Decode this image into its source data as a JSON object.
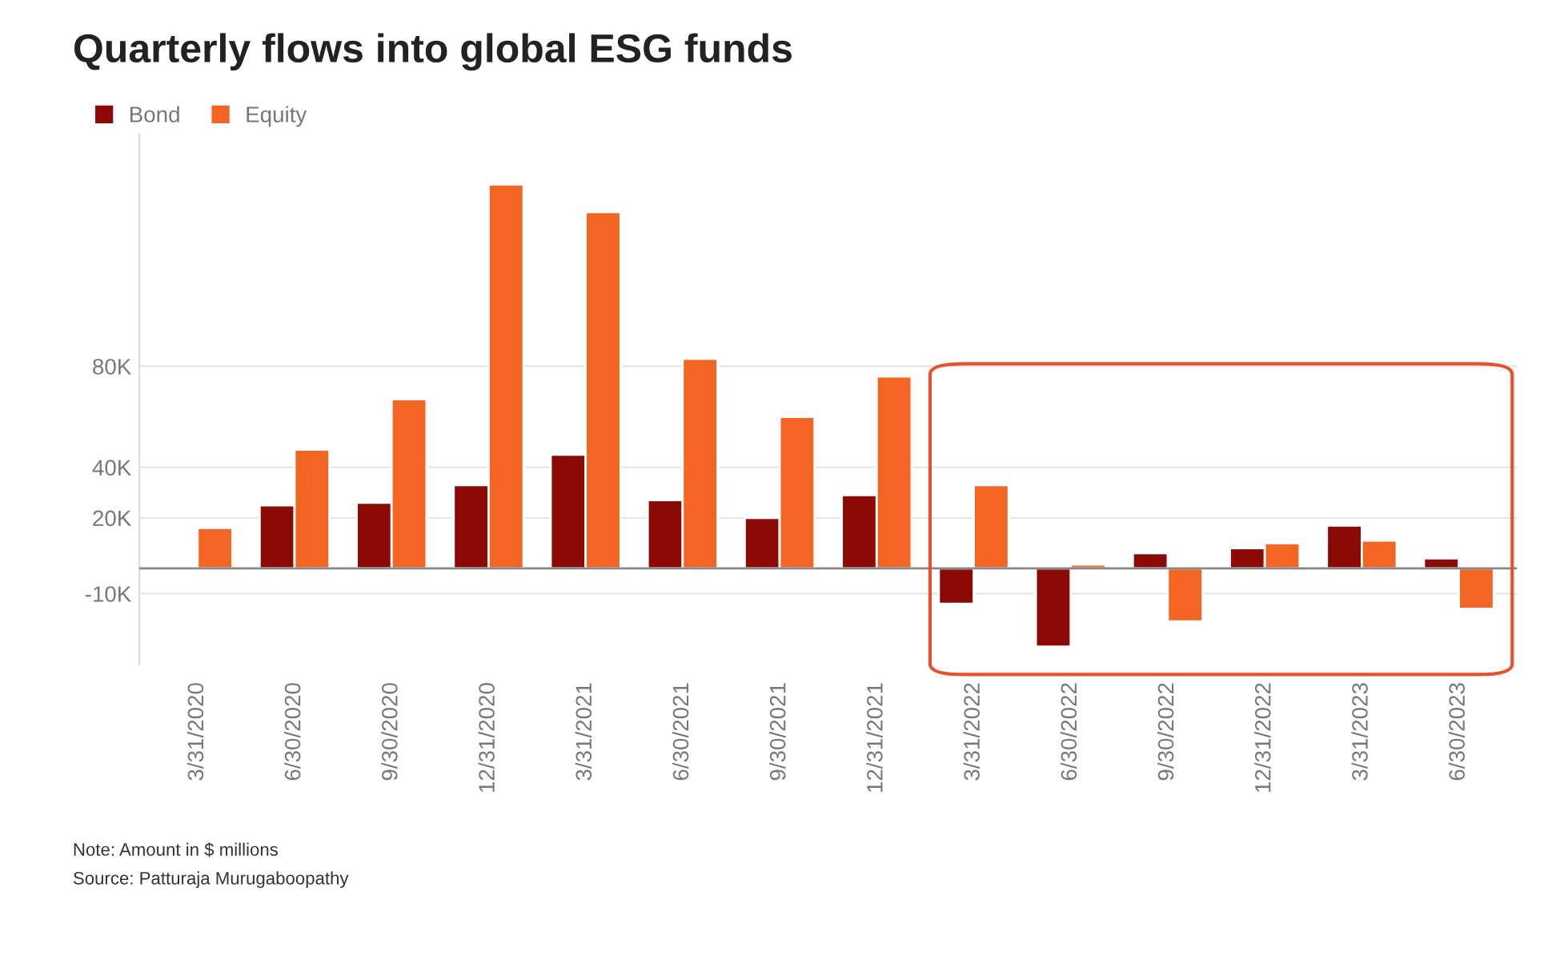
{
  "chart_data": {
    "type": "bar",
    "title": "Quarterly flows into global ESG funds",
    "categories": [
      "3/31/2020",
      "6/30/2020",
      "9/30/2020",
      "12/31/2020",
      "3/31/2021",
      "6/30/2021",
      "9/30/2021",
      "12/31/2021",
      "3/31/2022",
      "6/30/2022",
      "9/30/2022",
      "12/31/2022",
      "3/31/2023",
      "6/30/2023"
    ],
    "series": [
      {
        "name": "Bond",
        "color": "#8b0a06",
        "values": [
          null,
          25000,
          26000,
          33000,
          45000,
          27000,
          20000,
          29000,
          -14000,
          -31000,
          6000,
          8000,
          17000,
          4000
        ]
      },
      {
        "name": "Equity",
        "color": "#f26522",
        "values": [
          16000,
          47000,
          67000,
          152000,
          141000,
          83000,
          60000,
          76000,
          33000,
          1500,
          -21000,
          10000,
          11000,
          -16000
        ]
      }
    ],
    "ylim": [
      -38000,
      172000
    ],
    "yticks": [
      {
        "value": -10000,
        "label": "-10K"
      },
      {
        "value": 0,
        "label": null
      },
      {
        "value": 20000,
        "label": "20K"
      },
      {
        "value": 40000,
        "label": "40K"
      },
      {
        "value": 80000,
        "label": "80K"
      }
    ],
    "grid": "y",
    "legend": "top left",
    "annotations": [
      "Note: Amount in $ millions",
      "Source: Patturaja Murugaboopathy"
    ]
  }
}
